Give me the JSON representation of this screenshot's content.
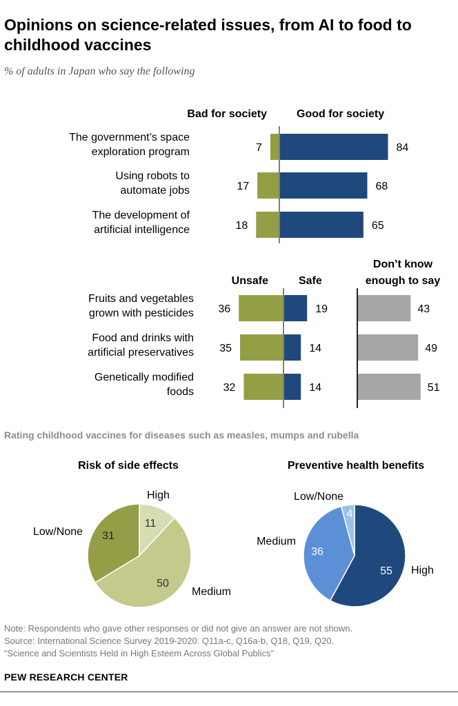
{
  "title": "Opinions on science-related issues, from AI to food to childhood vaccines",
  "subtitle": "% of adults in Japan who say the following",
  "colors": {
    "green": "#949f45",
    "navy": "#1f497d",
    "gray": "#a6a6a6",
    "axis": "#7f7f7f",
    "pie1": [
      "#d6dcb4",
      "#c3ca8c",
      "#959e47"
    ],
    "pie2": [
      "#1f497d",
      "#5b8fd6",
      "#9cc2ea"
    ]
  },
  "chart_data": [
    {
      "type": "bar",
      "column_headers": [
        "Bad for society",
        "Good for society"
      ],
      "categories": [
        [
          "The government’s space",
          "exploration program"
        ],
        [
          "Using robots to",
          "automate jobs"
        ],
        [
          "The development of",
          "artificial intelligence"
        ]
      ],
      "series": [
        {
          "name": "Bad for society",
          "values": [
            7,
            17,
            18
          ]
        },
        {
          "name": "Good for society",
          "values": [
            84,
            68,
            65
          ]
        }
      ]
    },
    {
      "type": "bar",
      "column_headers": [
        "Unsafe",
        "Safe",
        "Don’t know",
        "enough to say"
      ],
      "categories": [
        [
          "Fruits and vegetables",
          "grown with pesticides"
        ],
        [
          "Food and drinks with",
          "artificial preservatives"
        ],
        [
          "Genetically modified",
          "foods"
        ]
      ],
      "series": [
        {
          "name": "Unsafe",
          "values": [
            36,
            35,
            32
          ]
        },
        {
          "name": "Safe",
          "values": [
            19,
            14,
            14
          ]
        },
        {
          "name": "Don’t know enough to say",
          "values": [
            43,
            49,
            51
          ]
        }
      ]
    },
    {
      "type": "pie",
      "title": "Risk of side effects",
      "slices": [
        {
          "label": "High",
          "value": 11
        },
        {
          "label": "Medium",
          "value": 50
        },
        {
          "label": "Low/None",
          "value": 31
        }
      ]
    },
    {
      "type": "pie",
      "title": "Preventive health benefits",
      "slices": [
        {
          "label": "High",
          "value": 55
        },
        {
          "label": "Medium",
          "value": 36
        },
        {
          "label": "Low/None",
          "value": 4
        }
      ]
    }
  ],
  "vaccine_heading": "Rating childhood vaccines for diseases such as measles, mumps and rubella",
  "notes": [
    "Note: Respondents who gave other responses or did not give an answer are not shown.",
    "Source: International Science Survey 2019-2020. Q11a-c, Q16a-b, Q18, Q19, Q20.",
    "“Science and Scientists Held in High Esteem Across Global Publics”"
  ],
  "source_brand": "PEW RESEARCH CENTER"
}
